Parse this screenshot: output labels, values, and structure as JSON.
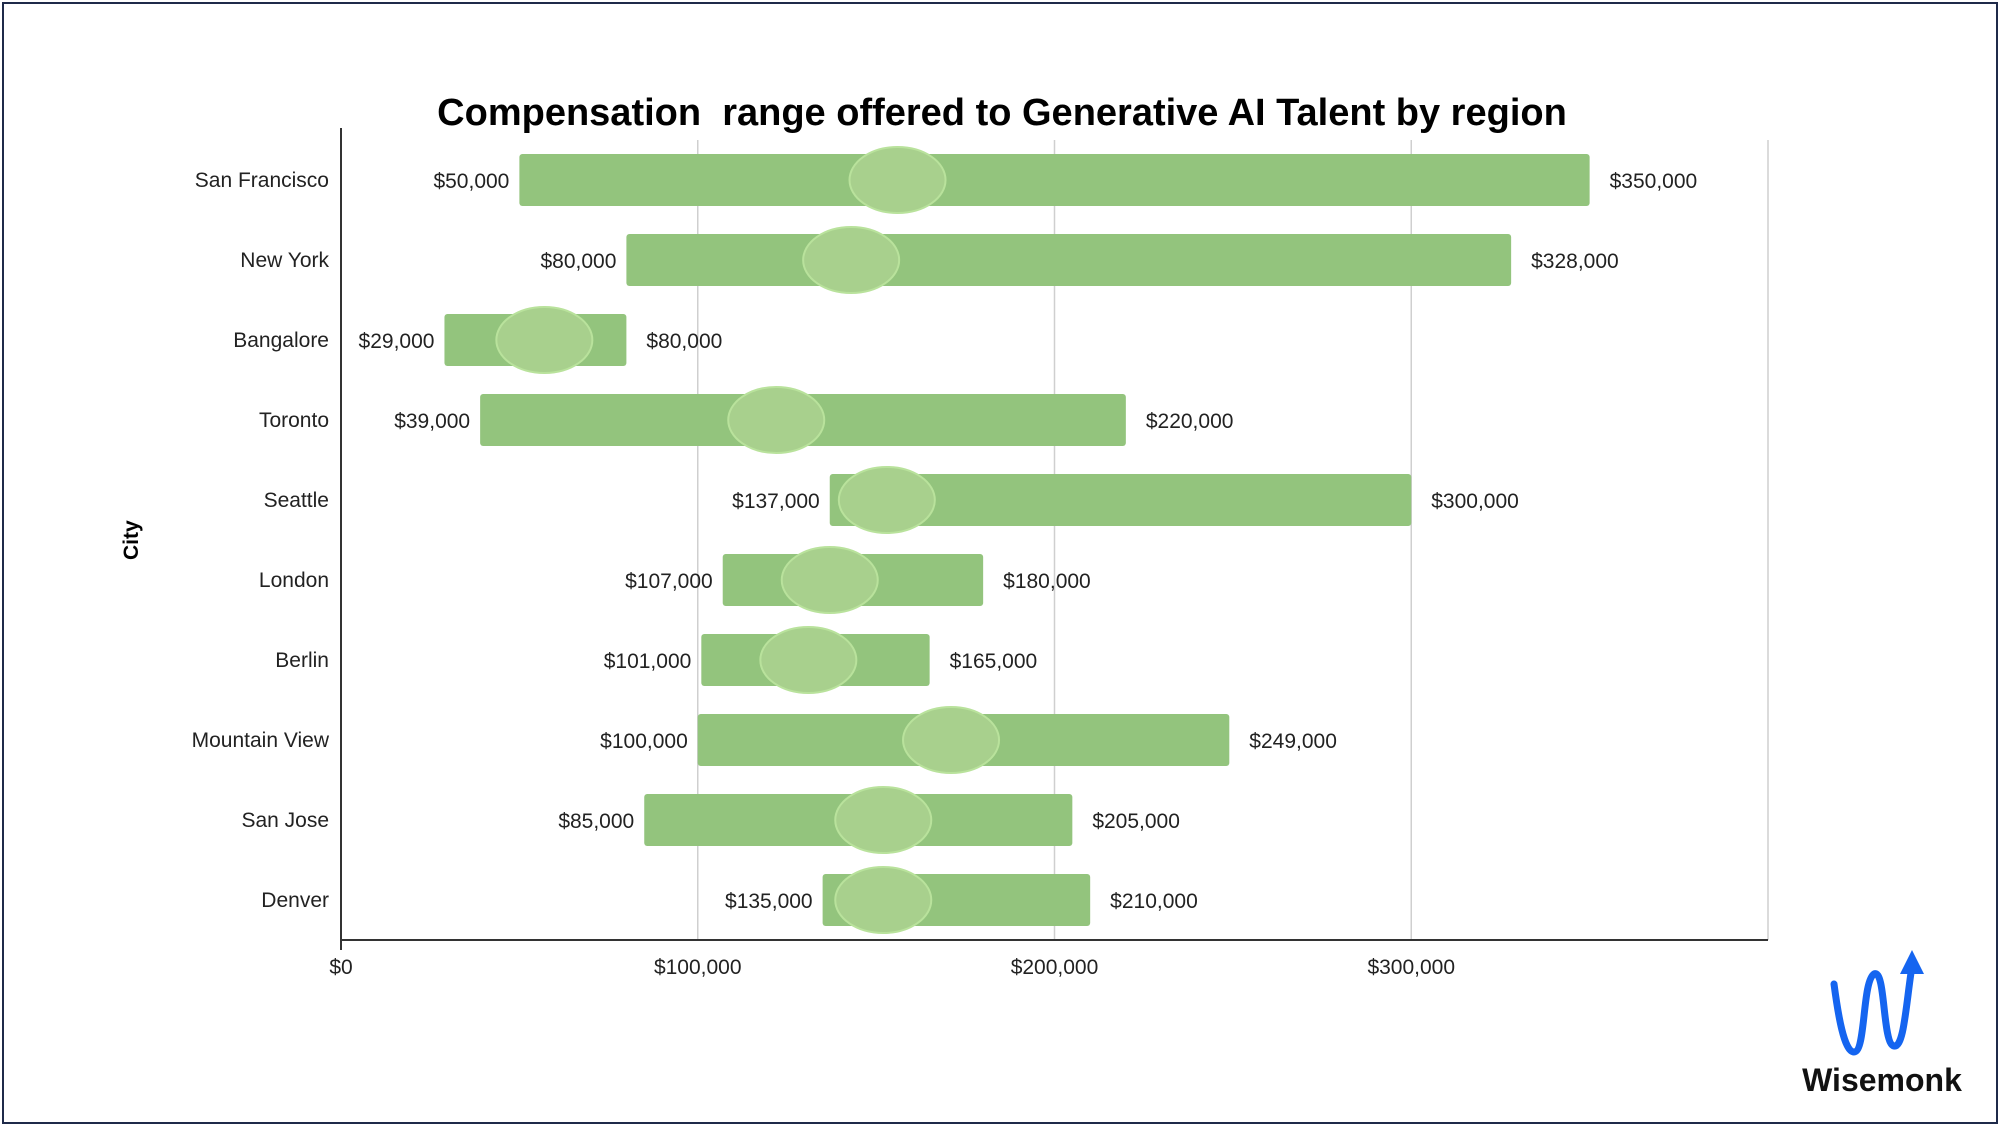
{
  "chart_data": {
    "type": "bar",
    "orientation": "horizontal",
    "variant": "floating-range",
    "title": "Compensation  range offered to Generative AI Talent by region",
    "ylabel": "City",
    "xlabel": "",
    "xlim": [
      0,
      400000
    ],
    "x_ticks": [
      0,
      100000,
      200000,
      300000
    ],
    "x_tick_labels": [
      "$0",
      "$100,000",
      "$200,000",
      "$300,000"
    ],
    "grid": true,
    "legend": "none",
    "bar_color": "#93c47d",
    "marker_color": "#a8d08d",
    "categories": [
      "San Francisco",
      "New York",
      "Bangalore",
      "Toronto",
      "Seattle",
      "London",
      "Berlin",
      "Mountain View",
      "San Jose",
      "Denver"
    ],
    "min_values": [
      50000,
      80000,
      29000,
      39000,
      137000,
      107000,
      101000,
      100000,
      85000,
      135000
    ],
    "max_values": [
      350000,
      328000,
      80000,
      220000,
      300000,
      180000,
      165000,
      249000,
      205000,
      210000
    ],
    "min_labels": [
      "$50,000",
      "$80,000",
      "$29,000",
      "$39,000",
      "$137,000",
      "$107,000",
      "$101,000",
      "$100,000",
      "$85,000",
      "$135,000"
    ],
    "max_labels": [
      "$350,000",
      "$328,000",
      "$80,000",
      "$220,000",
      "$300,000",
      "$180,000",
      "$165,000",
      "$249,000",
      "$205,000",
      "$210,000"
    ],
    "marker_values": [
      156000,
      143000,
      57000,
      122000,
      153000,
      137000,
      131000,
      171000,
      152000,
      152000
    ]
  },
  "logo": {
    "name": "Wisemonk",
    "icon": "wisemonk-wave-arrow-icon",
    "color": "#1565f0"
  }
}
